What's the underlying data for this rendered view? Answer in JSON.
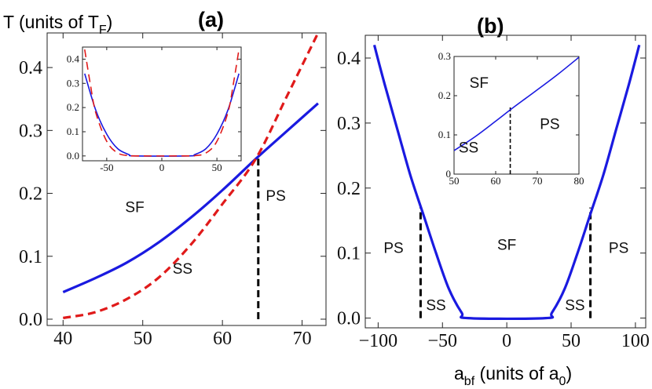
{
  "ylabel": {
    "main": "T (units of T",
    "sub": "F",
    "close": ")"
  },
  "xlabel": {
    "main": "a",
    "sub": "bf",
    "mid": " (units of a",
    "sub2": "0",
    "close": ")"
  },
  "chart_data": [
    {
      "id": "a",
      "type": "line",
      "title": "(a)",
      "xlim": [
        38,
        73
      ],
      "ylim": [
        -0.01,
        0.455
      ],
      "xticks": [
        "40",
        "50",
        "60",
        "70"
      ],
      "xtick_values": [
        40,
        50,
        60,
        70
      ],
      "yticks": [
        "0.0",
        "0.1",
        "0.2",
        "0.3",
        "0.4"
      ],
      "ytick_values": [
        0,
        0.1,
        0.2,
        0.3,
        0.4
      ],
      "series": [
        {
          "color": "#1a1ae0",
          "style": "solid",
          "x": [
            40,
            44,
            48,
            52,
            56,
            60,
            64.2,
            68,
            72
          ],
          "y": [
            0.043,
            0.065,
            0.09,
            0.122,
            0.161,
            0.205,
            0.255,
            0.298,
            0.343
          ]
        },
        {
          "color": "#e01a1a",
          "style": "dashed",
          "x": [
            40,
            44,
            48,
            52,
            56,
            60,
            64.2,
            68,
            72
          ],
          "y": [
            0.002,
            0.011,
            0.032,
            0.066,
            0.118,
            0.183,
            0.255,
            0.352,
            0.455
          ]
        }
      ],
      "vline": {
        "x": 64.5,
        "y": [
          0,
          0.255
        ],
        "style": "dashed"
      },
      "regions": [
        {
          "text": "SF",
          "x": 49,
          "y": 0.17
        },
        {
          "text": "SS",
          "x": 55,
          "y": 0.072
        },
        {
          "text": "PS",
          "x": 66.7,
          "y": 0.188
        }
      ],
      "inset": {
        "type": "line",
        "xlim": [
          -72,
          72
        ],
        "ylim": [
          -0.02,
          0.45
        ],
        "xticks": [
          "-50",
          "0",
          "50"
        ],
        "xtick_values": [
          -50,
          0,
          50
        ],
        "yticks": [
          "0.0",
          "0.1",
          "0.2",
          "0.3",
          "0.4"
        ],
        "ytick_values": [
          0,
          0.1,
          0.2,
          0.3,
          0.4
        ],
        "series": [
          {
            "color": "#1a1ae0",
            "style": "solid",
            "x": [
              -70,
              -60,
              -50,
              -40,
              -30,
              -24,
              24,
              30,
              40,
              50,
              60,
              70
            ],
            "y": [
              0.34,
              0.19,
              0.09,
              0.03,
              0.006,
              0,
              0,
              0.006,
              0.03,
              0.09,
              0.19,
              0.34
            ]
          },
          {
            "color": "#e01a1a",
            "style": "dashed",
            "x": [
              -70,
              -65,
              -60,
              -50,
              -40,
              -30,
              -24,
              24,
              30,
              40,
              50,
              60,
              65,
              70
            ],
            "y": [
              0.44,
              0.3,
              0.18,
              0.06,
              0.012,
              0.001,
              0,
              0,
              0.001,
              0.012,
              0.06,
              0.18,
              0.3,
              0.44
            ]
          }
        ]
      }
    },
    {
      "id": "b",
      "type": "line",
      "title": "(b)",
      "xlim": [
        -110,
        108
      ],
      "ylim": [
        -0.015,
        0.435
      ],
      "xticks": [
        "−100",
        "−50",
        "0",
        "50",
        "100"
      ],
      "xtick_values": [
        -100,
        -50,
        0,
        50,
        100
      ],
      "yticks": [
        "0.0",
        "0.1",
        "0.2",
        "0.3",
        "0.4"
      ],
      "ytick_values": [
        0,
        0.1,
        0.2,
        0.3,
        0.4
      ],
      "series": [
        {
          "color": "#1a1ae0",
          "style": "solid",
          "x": [
            -103,
            -95,
            -85,
            -75,
            -65,
            -55,
            -45,
            -35,
            -30,
            30,
            35,
            45,
            55,
            65,
            75,
            85,
            95,
            103
          ],
          "y": [
            0.42,
            0.36,
            0.29,
            0.22,
            0.16,
            0.1,
            0.045,
            0.008,
            0,
            0,
            0.008,
            0.045,
            0.1,
            0.16,
            0.22,
            0.29,
            0.36,
            0.42
          ]
        }
      ],
      "vlines": [
        {
          "x": -67,
          "y": [
            0,
            0.17
          ],
          "style": "dashed"
        },
        {
          "x": 65,
          "y": [
            0,
            0.17
          ],
          "style": "dashed"
        }
      ],
      "regions": [
        {
          "text": "PS",
          "x": -88,
          "y": 0.1
        },
        {
          "text": "SF",
          "x": 0,
          "y": 0.105
        },
        {
          "text": "PS",
          "x": 87,
          "y": 0.1
        },
        {
          "text": "SS",
          "x": -55,
          "y": 0.012
        },
        {
          "text": "SS",
          "x": 53,
          "y": 0.012
        }
      ],
      "inset": {
        "type": "line",
        "xlim": [
          50,
          80
        ],
        "ylim": [
          0,
          0.3
        ],
        "xticks": [
          "50",
          "60",
          "70",
          "80"
        ],
        "xtick_values": [
          50,
          60,
          70,
          80
        ],
        "yticks": [
          "0",
          "0.1",
          "0.2",
          "0.3"
        ],
        "ytick_values": [
          0,
          0.1,
          0.2,
          0.3
        ],
        "series": [
          {
            "color": "#1a1ae0",
            "style": "solid",
            "x": [
              50,
              55,
              60,
              64,
              70,
              75,
              80
            ],
            "y": [
              0.06,
              0.095,
              0.135,
              0.168,
              0.215,
              0.255,
              0.298
            ]
          }
        ],
        "vline": {
          "x": 63.5,
          "y": [
            0,
            0.17
          ],
          "style": "dashed"
        },
        "regions": [
          {
            "text": "SF",
            "x": 56,
            "y": 0.22
          },
          {
            "text": "SS",
            "x": 53.5,
            "y": 0.055
          },
          {
            "text": "PS",
            "x": 73,
            "y": 0.115
          }
        ]
      }
    }
  ]
}
